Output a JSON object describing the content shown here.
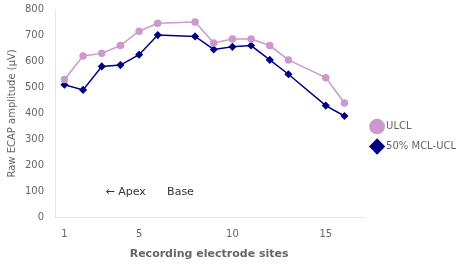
{
  "chart_data": {
    "type": "line",
    "x": [
      1,
      2,
      3,
      4,
      5,
      6,
      8,
      9,
      10,
      11,
      12,
      13,
      15,
      16
    ],
    "series": [
      {
        "name": "ULCL",
        "color": "#cc99cc",
        "marker": "circle",
        "values": [
          530,
          620,
          630,
          660,
          715,
          745,
          750,
          670,
          685,
          685,
          660,
          605,
          537,
          440
        ]
      },
      {
        "name": "50% MCL-UCL",
        "color": "#000080",
        "marker": "diamond",
        "values": [
          510,
          490,
          580,
          585,
          625,
          700,
          695,
          645,
          655,
          660,
          605,
          550,
          430,
          390
        ]
      }
    ],
    "x_label": "Recording electrode sites",
    "y_label": "Raw ECAP amplitude (µV)",
    "xlim": [
      0.5,
      17
    ],
    "xticks": [
      1,
      5,
      10,
      15
    ],
    "ylim": [
      0,
      800
    ],
    "yticks": [
      0,
      100,
      200,
      300,
      400,
      500,
      600,
      700,
      800
    ],
    "annotations": [
      {
        "text": "← Apex",
        "x": 3.2,
        "y": 100
      },
      {
        "text": "Base",
        "x": 6.5,
        "y": 100
      }
    ],
    "grid": false,
    "legend": "right"
  }
}
